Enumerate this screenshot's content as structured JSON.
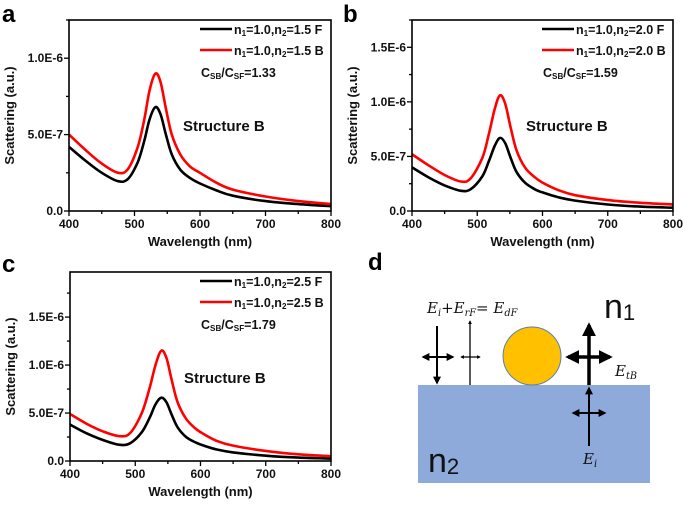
{
  "chart_data": [
    {
      "type": "line",
      "panel": "a",
      "xlabel": "Wavelength (nm)",
      "ylabel": "Scattering (a.u.)",
      "xlim": [
        400,
        800
      ],
      "ylim": [
        0,
        1.25e-06
      ],
      "xticks": [
        400,
        500,
        600,
        700,
        800
      ],
      "xtick_labels": [
        "400",
        "500",
        "600",
        "700",
        "800"
      ],
      "yticks": [
        0,
        5e-07,
        1e-06
      ],
      "ytick_labels": [
        "0.0",
        "5.0E-7",
        "1.0E-6"
      ],
      "annotation": "Structure B",
      "ratio": "C_{SB}/C_{SF}=1.33",
      "legend_position": "top-right",
      "series": [
        {
          "name": "n_1=1.0,n_2=1.5 F",
          "color": "#000000",
          "x": [
            400,
            425,
            450,
            475,
            490,
            505,
            515,
            523,
            532,
            540,
            548,
            557,
            570,
            585,
            600,
            625,
            650,
            700,
            750,
            800
          ],
          "y": [
            4.2e-07,
            3.3e-07,
            2.5e-07,
            1.95e-07,
            2.1e-07,
            3.2e-07,
            4.6e-07,
            6e-07,
            6.8e-07,
            6.3e-07,
            5e-07,
            3.7e-07,
            2.7e-07,
            2.15e-07,
            1.8e-07,
            1.35e-07,
            1e-07,
            6.5e-08,
            4.5e-08,
            3.2e-08
          ]
        },
        {
          "name": "n_1=1.0,n_2=1.5 B",
          "color": "#ff0000",
          "x": [
            400,
            425,
            450,
            475,
            490,
            505,
            515,
            523,
            532,
            540,
            548,
            557,
            570,
            585,
            600,
            625,
            650,
            700,
            750,
            800
          ],
          "y": [
            5e-07,
            4e-07,
            3.1e-07,
            2.5e-07,
            2.75e-07,
            4.2e-07,
            6e-07,
            7.9e-07,
            9e-07,
            8.4e-07,
            6.7e-07,
            5e-07,
            3.7e-07,
            2.9e-07,
            2.5e-07,
            1.85e-07,
            1.4e-07,
            9.5e-08,
            6.5e-08,
            4.5e-08
          ]
        }
      ]
    },
    {
      "type": "line",
      "panel": "b",
      "xlabel": "Wavelength (nm)",
      "ylabel": "Scattering (a.u.)",
      "xlim": [
        400,
        800
      ],
      "ylim": [
        0,
        1.75e-06
      ],
      "xticks": [
        400,
        500,
        600,
        700,
        800
      ],
      "xtick_labels": [
        "400",
        "500",
        "600",
        "700",
        "800"
      ],
      "yticks": [
        0,
        5e-07,
        1e-06,
        1.5e-06
      ],
      "ytick_labels": [
        "0.0",
        "5.0E-7",
        "1.0E-6",
        "1.5E-6"
      ],
      "annotation": "Structure B",
      "ratio": "C_{SB}/C_{SF}=1.59",
      "legend_position": "top-right",
      "series": [
        {
          "name": "n_1=1.0,n_2=2.0 F",
          "color": "#000000",
          "x": [
            400,
            425,
            450,
            475,
            490,
            508,
            518,
            527,
            535,
            543,
            551,
            560,
            573,
            588,
            600,
            625,
            650,
            700,
            750,
            800
          ],
          "y": [
            4e-07,
            3.1e-07,
            2.35e-07,
            1.85e-07,
            2e-07,
            3.2e-07,
            4.6e-07,
            6e-07,
            6.7e-07,
            6.2e-07,
            4.9e-07,
            3.6e-07,
            2.6e-07,
            2e-07,
            1.7e-07,
            1.25e-07,
            9.5e-08,
            6e-08,
            4e-08,
            3e-08
          ]
        },
        {
          "name": "n_1=1.0,n_2=2.0 B",
          "color": "#ff0000",
          "x": [
            400,
            425,
            450,
            475,
            490,
            508,
            518,
            527,
            535,
            543,
            551,
            560,
            573,
            588,
            600,
            625,
            650,
            700,
            750,
            800
          ],
          "y": [
            5.2e-07,
            4.2e-07,
            3.3e-07,
            2.7e-07,
            3e-07,
            4.9e-07,
            7.1e-07,
            9.4e-07,
            1.06e-06,
            9.8e-07,
            7.7e-07,
            5.6e-07,
            4e-07,
            3.1e-07,
            2.6e-07,
            1.9e-07,
            1.45e-07,
            1e-07,
            7.5e-08,
            6e-08
          ]
        }
      ]
    },
    {
      "type": "line",
      "panel": "c",
      "xlabel": "Wavelength (nm)",
      "ylabel": "Scattering (a.u.)",
      "xlim": [
        400,
        800
      ],
      "ylim": [
        0,
        1.97e-06
      ],
      "xticks": [
        400,
        500,
        600,
        700,
        800
      ],
      "xtick_labels": [
        "400",
        "500",
        "600",
        "700",
        "800"
      ],
      "yticks": [
        0,
        5e-07,
        1e-06,
        1.5e-06
      ],
      "ytick_labels": [
        "0.0",
        "5.0E-7",
        "1.0E-6",
        "1.5E-6"
      ],
      "annotation": "Structure B",
      "ratio": "C_{SB}/C_{SF}=1.79",
      "legend_position": "top-right",
      "series": [
        {
          "name": "n_1=1.0,n_2=2.5 F",
          "color": "#000000",
          "x": [
            400,
            425,
            450,
            475,
            492,
            510,
            522,
            531,
            540,
            548,
            556,
            565,
            578,
            592,
            605,
            625,
            650,
            700,
            750,
            800
          ],
          "y": [
            3.8e-07,
            2.9e-07,
            2.2e-07,
            1.7e-07,
            1.85e-07,
            3e-07,
            4.5e-07,
            5.9e-07,
            6.6e-07,
            6.1e-07,
            4.8e-07,
            3.5e-07,
            2.5e-07,
            1.95e-07,
            1.6e-07,
            1.2e-07,
            9e-08,
            5.5e-08,
            3.5e-08,
            2.5e-08
          ]
        },
        {
          "name": "n_1=1.0,n_2=2.5 B",
          "color": "#ff0000",
          "x": [
            400,
            425,
            450,
            475,
            492,
            510,
            522,
            531,
            540,
            548,
            556,
            565,
            578,
            592,
            605,
            625,
            650,
            700,
            750,
            800
          ],
          "y": [
            4.9e-07,
            3.9e-07,
            3.1e-07,
            2.6e-07,
            2.9e-07,
            5e-07,
            7.6e-07,
            1e-06,
            1.15e-06,
            1.07e-06,
            8.4e-07,
            6.1e-07,
            4.4e-07,
            3.4e-07,
            2.8e-07,
            2.1e-07,
            1.6e-07,
            1.05e-07,
            7e-08,
            5e-08
          ]
        }
      ]
    }
  ],
  "diagram": {
    "panel": "d",
    "n1": "n_1",
    "n2": "n_2",
    "eq": "E_i+E_{rF}= E_{dF}",
    "etb": "E_{tB}",
    "ei": "E_i",
    "substrate_color": "#8eaadb",
    "particle_color": "#ffc000"
  }
}
